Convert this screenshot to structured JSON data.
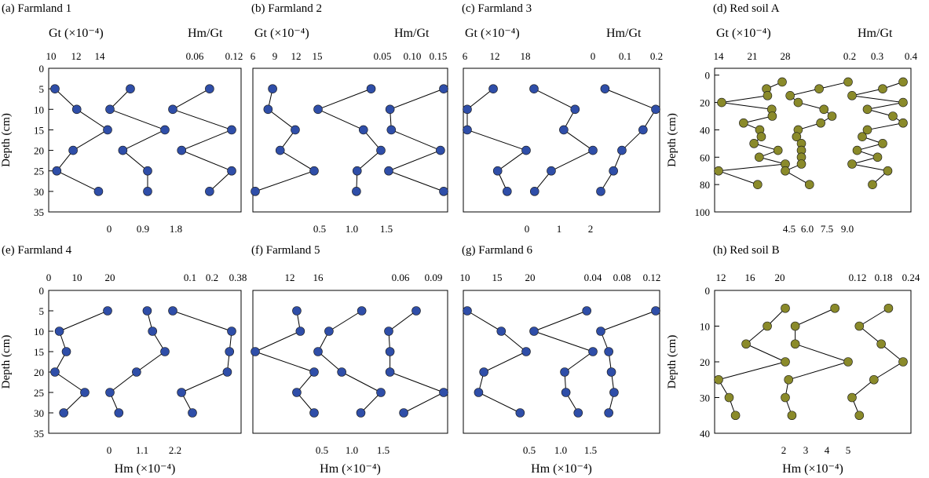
{
  "chart_data": [
    {
      "type": "scatter",
      "title": "(a) Farmland 1",
      "color": "#2f4ea8",
      "header_left": "Gt (×10⁻⁴)",
      "header_right": "Hm/Gt",
      "depth_ticks": [
        "0",
        "5",
        "10",
        "15",
        "20",
        "25",
        "30",
        "35"
      ],
      "top_ticks": [
        "10",
        "12",
        "14",
        "0.06",
        "0.12"
      ],
      "bottom_ticks": [
        "0",
        "0.9",
        "1.8"
      ],
      "show_ylabel": true,
      "ylabel": "Depth (cm)",
      "ylim": [
        0,
        35
      ],
      "depth": [
        5,
        10,
        15,
        20,
        25,
        30
      ],
      "series": [
        {
          "key": "Gt",
          "values": [
            10.3,
            11.5,
            13.2,
            11.3,
            10.4,
            12.7
          ]
        },
        {
          "key": "Hm",
          "values": [
            0.89,
            0.43,
            1.67,
            0.72,
            1.28,
            1.28
          ]
        },
        {
          "key": "Hm/Gt",
          "values": [
            0.09,
            0.04,
            0.12,
            0.052,
            0.12,
            0.09
          ]
        }
      ]
    },
    {
      "type": "scatter",
      "title": "(b) Farmland 2",
      "color": "#2f4ea8",
      "header_left": "Gt (×10⁻⁴)",
      "header_right": "Hm/Gt",
      "depth_ticks": [],
      "top_ticks": [
        "6",
        "9",
        "12",
        "15",
        "0.05",
        "0.10",
        "0.15"
      ],
      "bottom_ticks": [
        "0.5",
        "1.0",
        "1.5"
      ],
      "show_ylabel": false,
      "ylabel": "",
      "ylim": [
        0,
        35
      ],
      "depth": [
        5,
        10,
        15,
        20,
        25,
        30
      ],
      "series": [
        {
          "key": "Gt",
          "values": [
            8.8,
            8.2,
            11.8,
            9.8,
            14.3,
            6.5
          ]
        },
        {
          "key": "Hm",
          "values": [
            1.24,
            0.48,
            1.13,
            1.38,
            1.04,
            1.03
          ]
        },
        {
          "key": "Hm/Gt",
          "values": [
            0.145,
            0.062,
            0.064,
            0.14,
            0.06,
            0.145
          ]
        }
      ]
    },
    {
      "type": "scatter",
      "title": "(c) Farmland 3",
      "color": "#2f4ea8",
      "header_left": "Gt (×10⁻⁴)",
      "header_right": "Hm/Gt",
      "depth_ticks": [],
      "top_ticks": [
        "6",
        "12",
        "18",
        "0",
        "0.1",
        "0.2"
      ],
      "bottom_ticks": [
        "0",
        "1",
        "2"
      ],
      "show_ylabel": false,
      "ylabel": "",
      "ylim": [
        0,
        35
      ],
      "depth": [
        5,
        10,
        15,
        20,
        25,
        30
      ],
      "series": [
        {
          "key": "Gt",
          "values": [
            12.3,
            8.2,
            8.2,
            17.5,
            13.0,
            14.5
          ]
        },
        {
          "key": "Hm",
          "values": [
            0.76,
            1.45,
            1.26,
            1.75,
            1.05,
            0.77
          ]
        },
        {
          "key": "Hm/Gt",
          "values": [
            0.06,
            0.18,
            0.15,
            0.1,
            0.08,
            0.05
          ]
        }
      ]
    },
    {
      "type": "scatter",
      "title": "(d) Red soil A",
      "color": "#8a8a2a",
      "header_left": "Gt (×10⁻⁴)",
      "header_right": "Hm/Gt",
      "depth_ticks": [
        "0",
        "20",
        "40",
        "60",
        "80",
        "100"
      ],
      "top_ticks": [
        "14",
        "21",
        "28",
        "0.2",
        "0.3",
        "0.4"
      ],
      "bottom_ticks": [
        "4.5",
        "6.0",
        "7.5",
        "9.0"
      ],
      "show_ylabel": true,
      "ylabel": "Depth (cm)",
      "ylim": [
        -5,
        100
      ],
      "depth": [
        5,
        10,
        15,
        20,
        25,
        30,
        35,
        40,
        45,
        50,
        55,
        60,
        65,
        70,
        80
      ],
      "series": [
        {
          "key": "Gt",
          "values": [
            26.2,
            23.2,
            23.4,
            14.6,
            24.2,
            24.3,
            18.8,
            21.9,
            22.2,
            20.8,
            25.4,
            21.8,
            26.8,
            14.0,
            21.5
          ]
        },
        {
          "key": "Hm",
          "values": [
            8.6,
            6.8,
            5.0,
            5.5,
            7.1,
            7.6,
            6.9,
            5.5,
            5.4,
            5.7,
            5.7,
            5.7,
            5.7,
            4.7,
            6.2
          ]
        },
        {
          "key": "Hm/Gt",
          "values": [
            0.35,
            0.31,
            0.25,
            0.35,
            0.28,
            0.33,
            0.35,
            0.28,
            0.27,
            0.31,
            0.26,
            0.3,
            0.25,
            0.32,
            0.29
          ]
        }
      ]
    },
    {
      "type": "scatter",
      "title": "(e) Farmland 4",
      "color": "#2f4ea8",
      "header_left": "",
      "header_right": "",
      "depth_ticks": [
        "0",
        "5",
        "10",
        "15",
        "20",
        "25",
        "30",
        "35"
      ],
      "top_ticks": [
        "0",
        "10",
        "20",
        "0.1",
        "0.2",
        "0.38"
      ],
      "bottom_ticks": [
        "0",
        "1.1",
        "2.2"
      ],
      "show_ylabel": true,
      "ylabel": "Depth (cm)",
      "ylim": [
        0,
        35
      ],
      "depth": [
        5,
        10,
        15,
        20,
        25,
        30
      ],
      "series": [
        {
          "key": "Gt",
          "values": [
            17.8,
            6.8,
            8.4,
            5.8,
            12.6,
            7.8
          ]
        },
        {
          "key": "Hm",
          "values": [
            1.55,
            1.7,
            2.05,
            1.25,
            0.5,
            0.75
          ]
        },
        {
          "key": "Hm/Gt",
          "values": [
            0.11,
            0.38,
            0.37,
            0.36,
            0.15,
            0.2
          ]
        }
      ]
    },
    {
      "type": "scatter",
      "title": "(f) Farmland 5",
      "color": "#2f4ea8",
      "header_left": "",
      "header_right": "",
      "depth_ticks": [],
      "top_ticks": [
        "12",
        "16",
        "0.06",
        "0.09"
      ],
      "bottom_ticks": [
        "0.5",
        "1.0",
        "1.5"
      ],
      "show_ylabel": false,
      "ylabel": "",
      "ylim": [
        0,
        35
      ],
      "depth": [
        5,
        10,
        15,
        20,
        25,
        30
      ],
      "series": [
        {
          "key": "Gt",
          "values": [
            12.2,
            12.4,
            9.8,
            13.2,
            12.2,
            13.2
          ]
        },
        {
          "key": "Hm",
          "values": [
            0.98,
            0.62,
            0.5,
            0.76,
            1.19,
            0.97
          ]
        },
        {
          "key": "Hm/Gt",
          "values": [
            0.078,
            0.056,
            0.057,
            0.057,
            0.1,
            0.068
          ]
        }
      ]
    },
    {
      "type": "scatter",
      "title": "(g) Farmland 6",
      "color": "#2f4ea8",
      "header_left": "",
      "header_right": "",
      "depth_ticks": [],
      "top_ticks": [
        "10",
        "15",
        "20",
        "0.04",
        "0.08",
        "0.12"
      ],
      "bottom_ticks": [
        "0.5",
        "1.0",
        "1.5"
      ],
      "show_ylabel": false,
      "ylabel": "",
      "ylim": [
        0,
        35
      ],
      "depth": [
        5,
        10,
        15,
        20,
        25,
        30
      ],
      "series": [
        {
          "key": "Gt",
          "values": [
            10.0,
            14.5,
            17.8,
            12.2,
            11.5,
            17.0
          ]
        },
        {
          "key": "Hm",
          "values": [
            1.15,
            0.72,
            1.2,
            0.97,
            0.98,
            1.08
          ]
        },
        {
          "key": "Hm/Gt",
          "values": [
            0.123,
            0.061,
            0.07,
            0.073,
            0.076,
            0.07
          ]
        }
      ]
    },
    {
      "type": "scatter",
      "title": "(h) Red soil B",
      "color": "#8a8a2a",
      "header_left": "",
      "header_right": "",
      "depth_ticks": [
        "0",
        "10",
        "20",
        "30",
        "40"
      ],
      "top_ticks": [
        "12",
        "16",
        "20",
        "0.12",
        "0.18",
        "0.24"
      ],
      "bottom_ticks": [
        "2",
        "3",
        "4",
        "5"
      ],
      "show_ylabel": true,
      "ylabel": "Depth (cm)",
      "ylim": [
        0,
        40
      ],
      "depth": [
        5,
        10,
        15,
        20,
        25,
        30,
        35
      ],
      "series": [
        {
          "key": "Gt",
          "values": [
            19.5,
            17.8,
            15.8,
            19.5,
            13.2,
            14.2,
            14.8
          ]
        },
        {
          "key": "Hm",
          "values": [
            3.9,
            2.7,
            2.7,
            4.3,
            2.5,
            2.4,
            2.6
          ]
        },
        {
          "key": "Hm/Gt",
          "values": [
            0.21,
            0.17,
            0.2,
            0.23,
            0.19,
            0.16,
            0.17
          ]
        }
      ]
    }
  ],
  "xlabels": {
    "label": "Hm (×10⁻⁴)"
  }
}
